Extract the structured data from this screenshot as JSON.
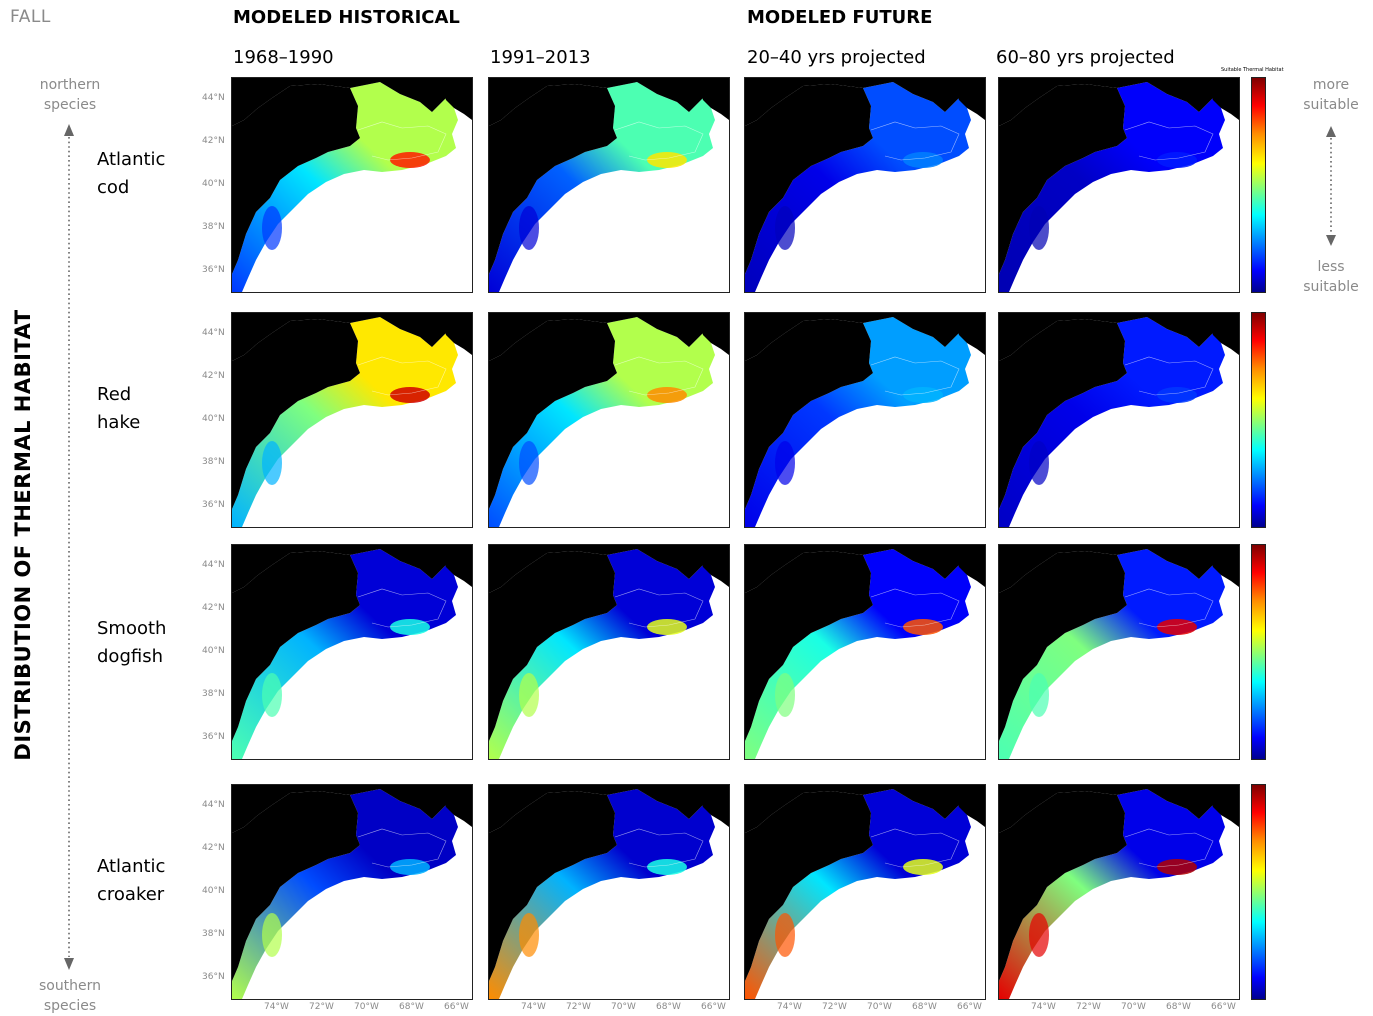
{
  "season_label": "FALL",
  "sections": {
    "historical": "MODELED HISTORICAL",
    "future": "MODELED FUTURE"
  },
  "periods": [
    "1968–1990",
    "1991–2013",
    "20–40 yrs projected",
    "60–80 yrs projected"
  ],
  "y_axis_title": "DISTRIBUTION OF THERMAL HABITAT",
  "northern_label": [
    "northern",
    "species"
  ],
  "southern_label": [
    "southern",
    "species"
  ],
  "more_label": [
    "more",
    "suitable"
  ],
  "less_label": [
    "less",
    "suitable"
  ],
  "colorbar_title": "Suitable Thermal Habitat",
  "species": [
    [
      "Atlantic",
      "cod"
    ],
    [
      "Red",
      "hake"
    ],
    [
      "Smooth",
      "dogfish"
    ],
    [
      "Atlantic",
      "croaker"
    ]
  ],
  "lat_ticks": [
    "44°N",
    "42°N",
    "40°N",
    "38°N",
    "36°N"
  ],
  "lon_ticks": [
    "74°W",
    "72°W",
    "70°W",
    "68°W",
    "66°W"
  ],
  "colors": {
    "land": "#000000",
    "ocean_outside": "#ffffff",
    "colormap": [
      "#00008f",
      "#0000ff",
      "#0080ff",
      "#00ffff",
      "#7fff7f",
      "#ffff00",
      "#ff8c00",
      "#ff0000",
      "#7f0000"
    ]
  },
  "habitat_suitability": {
    "scale": "0 = less suitable, 1 = more suitable",
    "rows": [
      [
        {
          "gulf_of_maine": 0.55,
          "shelf_north": 0.35,
          "shelf_south": 0.18,
          "hotspot": 0.85
        },
        {
          "gulf_of_maine": 0.45,
          "shelf_north": 0.22,
          "shelf_south": 0.08,
          "hotspot": 0.65
        },
        {
          "gulf_of_maine": 0.2,
          "shelf_north": 0.1,
          "shelf_south": 0.05,
          "hotspot": 0.25
        },
        {
          "gulf_of_maine": 0.12,
          "shelf_north": 0.06,
          "shelf_south": 0.04,
          "hotspot": 0.15
        }
      ],
      [
        {
          "gulf_of_maine": 0.65,
          "shelf_north": 0.5,
          "shelf_south": 0.3,
          "hotspot": 0.92
        },
        {
          "gulf_of_maine": 0.55,
          "shelf_north": 0.35,
          "shelf_south": 0.2,
          "hotspot": 0.75
        },
        {
          "gulf_of_maine": 0.28,
          "shelf_north": 0.18,
          "shelf_south": 0.1,
          "hotspot": 0.3
        },
        {
          "gulf_of_maine": 0.15,
          "shelf_north": 0.1,
          "shelf_south": 0.06,
          "hotspot": 0.18
        }
      ],
      [
        {
          "gulf_of_maine": 0.08,
          "shelf_north": 0.3,
          "shelf_south": 0.45,
          "hotspot": 0.4
        },
        {
          "gulf_of_maine": 0.08,
          "shelf_north": 0.35,
          "shelf_south": 0.55,
          "hotspot": 0.6
        },
        {
          "gulf_of_maine": 0.12,
          "shelf_north": 0.4,
          "shelf_south": 0.5,
          "hotspot": 0.8
        },
        {
          "gulf_of_maine": 0.15,
          "shelf_north": 0.5,
          "shelf_south": 0.45,
          "hotspot": 0.9
        }
      ],
      [
        {
          "gulf_of_maine": 0.06,
          "shelf_north": 0.2,
          "shelf_south": 0.55,
          "hotspot": 0.3
        },
        {
          "gulf_of_maine": 0.07,
          "shelf_north": 0.3,
          "shelf_south": 0.75,
          "hotspot": 0.4
        },
        {
          "gulf_of_maine": 0.08,
          "shelf_north": 0.35,
          "shelf_south": 0.8,
          "hotspot": 0.6
        },
        {
          "gulf_of_maine": 0.1,
          "shelf_north": 0.5,
          "shelf_south": 0.9,
          "hotspot": 0.95
        }
      ]
    ]
  }
}
